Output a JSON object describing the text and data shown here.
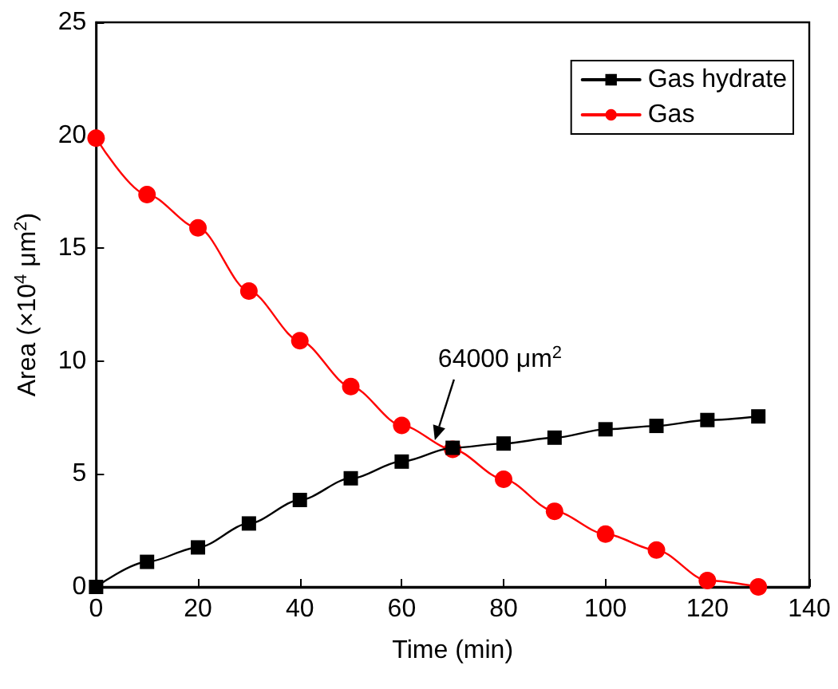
{
  "chart_data": {
    "type": "line",
    "xlabel": "Time (min)",
    "ylabel": "Area (×10$^{4}$ μm$^{2}$)",
    "x": [
      0,
      10,
      20,
      30,
      40,
      50,
      60,
      70,
      80,
      90,
      100,
      110,
      120,
      130
    ],
    "series": [
      {
        "name": "Gas hydrate",
        "color": "#000000",
        "marker": "square",
        "values": [
          0,
          1.11,
          1.75,
          2.81,
          3.85,
          4.81,
          5.55,
          6.16,
          6.35,
          6.61,
          6.98,
          7.13,
          7.39,
          7.55
        ]
      },
      {
        "name": "Gas",
        "color": "#ff0000",
        "marker": "circle",
        "values": [
          19.87,
          17.37,
          15.9,
          13.1,
          10.9,
          8.87,
          7.15,
          6.09,
          4.77,
          3.35,
          2.34,
          1.63,
          0.28,
          0
        ]
      }
    ],
    "xlim": [
      0,
      140
    ],
    "xticks": [
      0,
      20,
      40,
      60,
      80,
      100,
      120,
      140
    ],
    "ylim": [
      0,
      25
    ],
    "yticks": [
      0,
      5,
      10,
      15,
      20,
      25
    ],
    "grid": false,
    "legend": "top right",
    "line_style": "solid",
    "annotations": [
      {
        "text": "64000 μm$^{2}$",
        "x": 66.5,
        "y": 6.5
      }
    ]
  }
}
